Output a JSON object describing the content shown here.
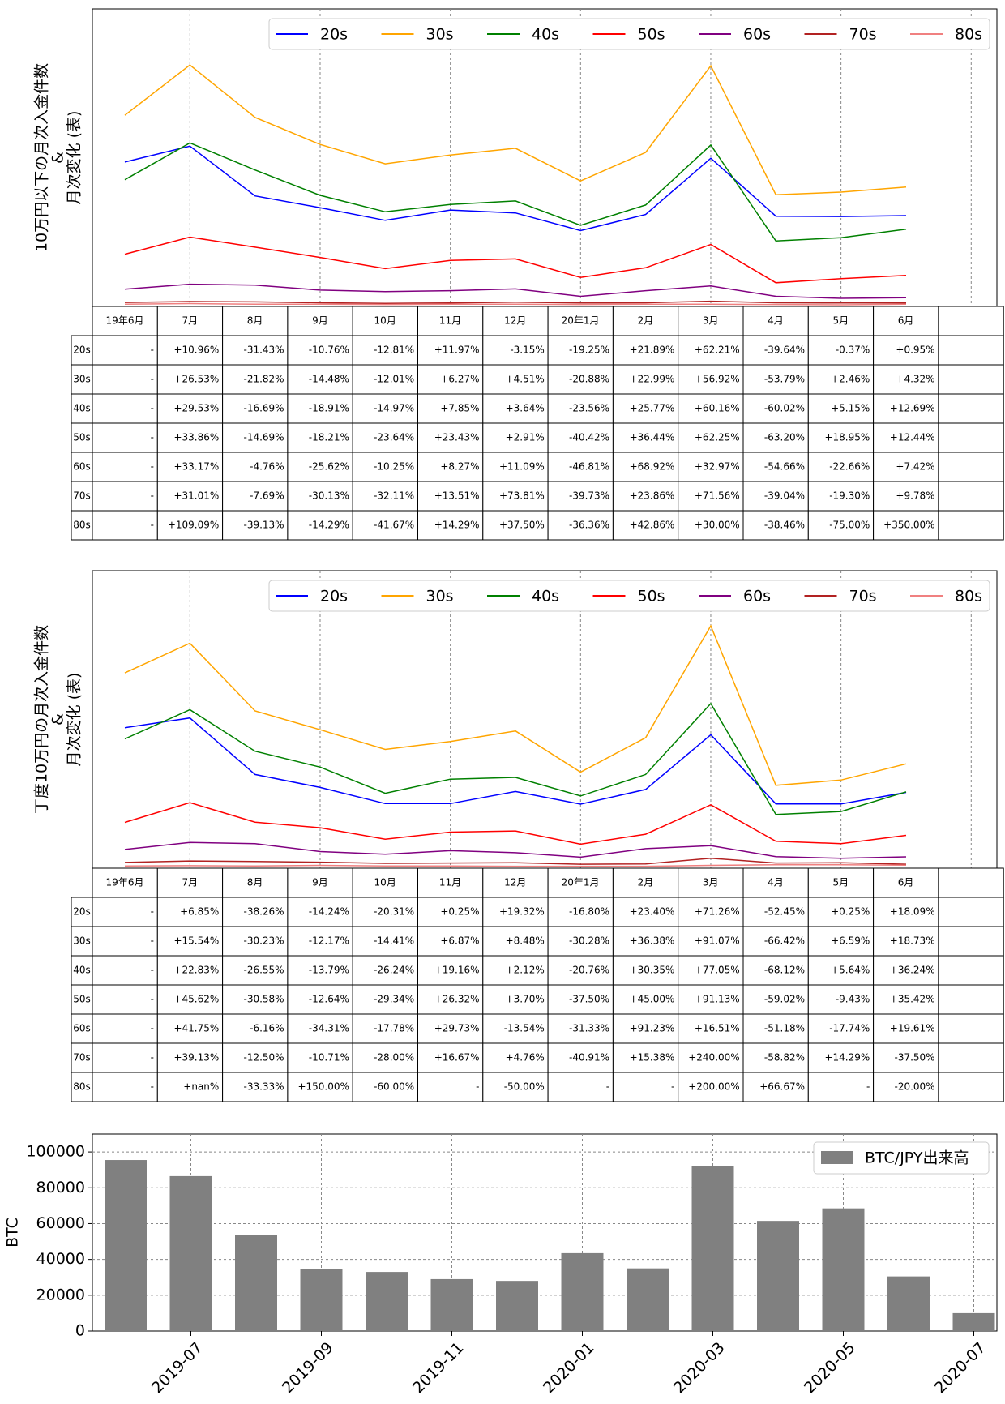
{
  "chart_data": [
    {
      "type": "line",
      "ylabel_lines": [
        "10万円以下の月次入金件数",
        "&",
        "月次変化 (表)"
      ],
      "legend": [
        "20s",
        "30s",
        "40s",
        "50s",
        "60s",
        "70s",
        "80s"
      ],
      "colors": {
        "20s": "#0000ff",
        "30s": "#ffa500",
        "40s": "#008000",
        "50s": "#ff0000",
        "60s": "#800080",
        "70s": "#b22222",
        "80s": "#f08080"
      },
      "series": [
        {
          "name": "20s",
          "values": [
            0.485,
            0.539,
            0.37,
            0.33,
            0.287,
            0.322,
            0.312,
            0.252,
            0.307,
            0.498,
            0.301,
            0.3,
            0.303
          ]
        },
        {
          "name": "30s",
          "values": [
            0.644,
            0.815,
            0.637,
            0.545,
            0.479,
            0.509,
            0.532,
            0.421,
            0.518,
            0.812,
            0.374,
            0.383,
            0.4
          ]
        },
        {
          "name": "40s",
          "values": [
            0.425,
            0.55,
            0.458,
            0.372,
            0.316,
            0.341,
            0.353,
            0.27,
            0.339,
            0.543,
            0.217,
            0.228,
            0.257
          ]
        },
        {
          "name": "50s",
          "values": [
            0.172,
            0.23,
            0.196,
            0.161,
            0.123,
            0.151,
            0.156,
            0.093,
            0.126,
            0.205,
            0.075,
            0.089,
            0.1
          ]
        },
        {
          "name": "60s",
          "values": [
            0.053,
            0.07,
            0.067,
            0.05,
            0.045,
            0.048,
            0.054,
            0.029,
            0.048,
            0.064,
            0.029,
            0.022,
            0.024
          ]
        },
        {
          "name": "70s",
          "values": [
            0.008,
            0.011,
            0.01,
            0.007,
            0.005,
            0.006,
            0.009,
            0.006,
            0.007,
            0.012,
            0.007,
            0.006,
            0.006
          ]
        },
        {
          "name": "80s",
          "values": [
            0.002,
            0.004,
            0.002,
            0.002,
            0.001,
            0.002,
            0.002,
            0.001,
            0.002,
            0.002,
            0.001,
            0.0,
            0.002
          ]
        }
      ],
      "ylim": [
        0,
        1
      ],
      "table": {
        "columns": [
          "19年6月",
          "7月",
          "8月",
          "9月",
          "10月",
          "11月",
          "12月",
          "20年1月",
          "2月",
          "3月",
          "4月",
          "5月",
          "6月"
        ],
        "rows": [
          {
            "label": "20s",
            "cells": [
              "-",
              "+10.96%",
              "-31.43%",
              "-10.76%",
              "-12.81%",
              "+11.97%",
              "-3.15%",
              "-19.25%",
              "+21.89%",
              "+62.21%",
              "-39.64%",
              "-0.37%",
              "+0.95%"
            ]
          },
          {
            "label": "30s",
            "cells": [
              "-",
              "+26.53%",
              "-21.82%",
              "-14.48%",
              "-12.01%",
              "+6.27%",
              "+4.51%",
              "-20.88%",
              "+22.99%",
              "+56.92%",
              "-53.79%",
              "+2.46%",
              "+4.32%"
            ]
          },
          {
            "label": "40s",
            "cells": [
              "-",
              "+29.53%",
              "-16.69%",
              "-18.91%",
              "-14.97%",
              "+7.85%",
              "+3.64%",
              "-23.56%",
              "+25.77%",
              "+60.16%",
              "-60.02%",
              "+5.15%",
              "+12.69%"
            ]
          },
          {
            "label": "50s",
            "cells": [
              "-",
              "+33.86%",
              "-14.69%",
              "-18.21%",
              "-23.64%",
              "+23.43%",
              "+2.91%",
              "-40.42%",
              "+36.44%",
              "+62.25%",
              "-63.20%",
              "+18.95%",
              "+12.44%"
            ]
          },
          {
            "label": "60s",
            "cells": [
              "-",
              "+33.17%",
              "-4.76%",
              "-25.62%",
              "-10.25%",
              "+8.27%",
              "+11.09%",
              "-46.81%",
              "+68.92%",
              "+32.97%",
              "-54.66%",
              "-22.66%",
              "+7.42%"
            ]
          },
          {
            "label": "70s",
            "cells": [
              "-",
              "+31.01%",
              "-7.69%",
              "-30.13%",
              "-32.11%",
              "+13.51%",
              "+73.81%",
              "-39.73%",
              "+23.86%",
              "+71.56%",
              "-39.04%",
              "-19.30%",
              "+9.78%"
            ]
          },
          {
            "label": "80s",
            "cells": [
              "-",
              "+109.09%",
              "-39.13%",
              "-14.29%",
              "-41.67%",
              "+14.29%",
              "+37.50%",
              "-36.36%",
              "+42.86%",
              "+30.00%",
              "-38.46%",
              "-75.00%",
              "+350.00%"
            ]
          }
        ]
      }
    },
    {
      "type": "line",
      "ylabel_lines": [
        "丁度10万円の月次入金件数",
        "&",
        "月次変化 (表)"
      ],
      "legend": [
        "20s",
        "30s",
        "40s",
        "50s",
        "60s",
        "70s",
        "80s"
      ],
      "colors": {
        "20s": "#0000ff",
        "30s": "#ffa500",
        "40s": "#008000",
        "50s": "#ff0000",
        "60s": "#800080",
        "70s": "#b22222",
        "80s": "#f08080"
      },
      "series": [
        {
          "name": "20s",
          "values": [
            0.472,
            0.505,
            0.313,
            0.269,
            0.214,
            0.214,
            0.255,
            0.212,
            0.262,
            0.448,
            0.213,
            0.213,
            0.252
          ]
        },
        {
          "name": "30s",
          "values": [
            0.658,
            0.759,
            0.529,
            0.465,
            0.398,
            0.425,
            0.461,
            0.321,
            0.438,
            0.818,
            0.276,
            0.294,
            0.349
          ]
        },
        {
          "name": "40s",
          "values": [
            0.434,
            0.533,
            0.392,
            0.338,
            0.249,
            0.297,
            0.303,
            0.24,
            0.313,
            0.554,
            0.177,
            0.187,
            0.254
          ]
        },
        {
          "name": "50s",
          "values": [
            0.15,
            0.217,
            0.151,
            0.132,
            0.093,
            0.117,
            0.121,
            0.076,
            0.11,
            0.21,
            0.086,
            0.078,
            0.106
          ]
        },
        {
          "name": "60s",
          "values": [
            0.058,
            0.082,
            0.078,
            0.051,
            0.042,
            0.054,
            0.047,
            0.032,
            0.061,
            0.071,
            0.034,
            0.028,
            0.033
          ]
        },
        {
          "name": "70s",
          "values": [
            0.014,
            0.019,
            0.017,
            0.015,
            0.011,
            0.012,
            0.013,
            0.008,
            0.009,
            0.028,
            0.012,
            0.013,
            0.008
          ]
        },
        {
          "name": "80s",
          "values": [
            0.002,
            0.003,
            0.002,
            0.004,
            0.002,
            0.002,
            0.001,
            0.001,
            0.001,
            0.004,
            0.006,
            0.006,
            0.005
          ]
        }
      ],
      "ylim": [
        0,
        1
      ],
      "table": {
        "columns": [
          "19年6月",
          "7月",
          "8月",
          "9月",
          "10月",
          "11月",
          "12月",
          "20年1月",
          "2月",
          "3月",
          "4月",
          "5月",
          "6月"
        ],
        "rows": [
          {
            "label": "20s",
            "cells": [
              "-",
              "+6.85%",
              "-38.26%",
              "-14.24%",
              "-20.31%",
              "+0.25%",
              "+19.32%",
              "-16.80%",
              "+23.40%",
              "+71.26%",
              "-52.45%",
              "+0.25%",
              "+18.09%"
            ]
          },
          {
            "label": "30s",
            "cells": [
              "-",
              "+15.54%",
              "-30.23%",
              "-12.17%",
              "-14.41%",
              "+6.87%",
              "+8.48%",
              "-30.28%",
              "+36.38%",
              "+91.07%",
              "-66.42%",
              "+6.59%",
              "+18.73%"
            ]
          },
          {
            "label": "40s",
            "cells": [
              "-",
              "+22.83%",
              "-26.55%",
              "-13.79%",
              "-26.24%",
              "+19.16%",
              "+2.12%",
              "-20.76%",
              "+30.35%",
              "+77.05%",
              "-68.12%",
              "+5.64%",
              "+36.24%"
            ]
          },
          {
            "label": "50s",
            "cells": [
              "-",
              "+45.62%",
              "-30.58%",
              "-12.64%",
              "-29.34%",
              "+26.32%",
              "+3.70%",
              "-37.50%",
              "+45.00%",
              "+91.13%",
              "-59.02%",
              "-9.43%",
              "+35.42%"
            ]
          },
          {
            "label": "60s",
            "cells": [
              "-",
              "+41.75%",
              "-6.16%",
              "-34.31%",
              "-17.78%",
              "+29.73%",
              "-13.54%",
              "-31.33%",
              "+91.23%",
              "+16.51%",
              "-51.18%",
              "-17.74%",
              "+19.61%"
            ]
          },
          {
            "label": "70s",
            "cells": [
              "-",
              "+39.13%",
              "-12.50%",
              "-10.71%",
              "-28.00%",
              "+16.67%",
              "+4.76%",
              "-40.91%",
              "+15.38%",
              "+240.00%",
              "-58.82%",
              "+14.29%",
              "-37.50%"
            ]
          },
          {
            "label": "80s",
            "cells": [
              "-",
              "+nan%",
              "-33.33%",
              "+150.00%",
              "-60.00%",
              "-",
              "-50.00%",
              "-",
              "-",
              "+200.00%",
              "+66.67%",
              "-",
              "-20.00%"
            ]
          }
        ]
      }
    },
    {
      "type": "bar",
      "categories": [
        "2019-06",
        "2019-07",
        "2019-08",
        "2019-09",
        "2019-10",
        "2019-11",
        "2019-12",
        "2020-01",
        "2020-02",
        "2020-03",
        "2020-04",
        "2020-05",
        "2020-06",
        "2020-07"
      ],
      "series": [
        {
          "name": "BTC/JPY出来高",
          "values": [
            95500,
            86500,
            53500,
            34500,
            33000,
            29000,
            28000,
            43500,
            35000,
            92000,
            61500,
            68500,
            30500,
            10000
          ]
        }
      ],
      "ylabel": "BTC",
      "ylim": [
        0,
        110000
      ],
      "yticks": [
        "0",
        "20000",
        "40000",
        "60000",
        "80000",
        "100000"
      ],
      "xticks": [
        "2019-07",
        "2019-09",
        "2019-11",
        "2020-01",
        "2020-03",
        "2020-05",
        "2020-07"
      ],
      "bar_color": "#808080",
      "legend_position": "top-right",
      "grid": true
    }
  ]
}
